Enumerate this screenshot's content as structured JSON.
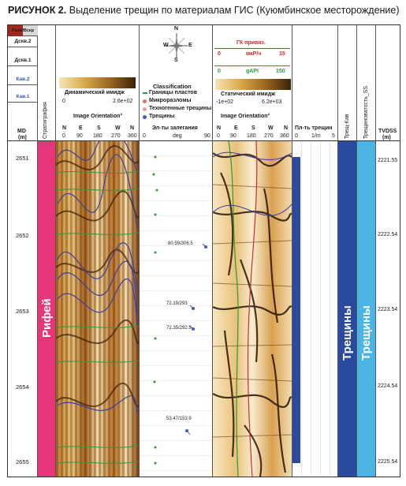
{
  "caption": {
    "prefix": "РИСУНОК 2.",
    "text": "Выделение трещин по материалам ГИС (Куюмбинское месторождение)"
  },
  "left_legend": {
    "items": [
      "Разм/Вскр",
      "Дскв.2",
      "Дскв.1",
      "Кав.2",
      "Кав.1"
    ]
  },
  "md_header": {
    "label": "MD",
    "unit": "(m)"
  },
  "strat_header": {
    "label": "Стратиграфия"
  },
  "dyn_image": {
    "title": "Динамический имидж",
    "min": "0",
    "max": "2.6e+02",
    "orientation": "Image Orientation°",
    "ticks": [
      "N",
      "E",
      "S",
      "W",
      "N"
    ],
    "tick_values": [
      "0",
      "90",
      "180",
      "270",
      "360"
    ]
  },
  "compass": {
    "n": "N",
    "s": "S",
    "w": "W",
    "e": "E"
  },
  "classification": {
    "title": "Classification",
    "items": [
      "Границы пластов",
      "Микроразломы",
      "Техногенные трещины",
      "Трещины"
    ]
  },
  "dip_track": {
    "title": "Эл-ты залегания",
    "min": "0",
    "unit": "deg",
    "max": "90",
    "annotations": [
      "80.59/306.5",
      "72.19/293",
      "72.35/292.5",
      "53.47/153.9"
    ]
  },
  "gk": {
    "title": "ГК привяз.",
    "min": "0",
    "unit": "мкР/ч",
    "max": "15",
    "color": "#d42a2a"
  },
  "gapi": {
    "min": "0",
    "unit": "gAPI",
    "max": "150",
    "color": "#22a032"
  },
  "static_image": {
    "title": "Статический имидж",
    "min": "-1e+02",
    "max": "6.2e+03",
    "orientation": "Image Orientation°",
    "ticks": [
      "N",
      "E",
      "S",
      "W",
      "N"
    ],
    "tick_values": [
      "0",
      "90",
      "180",
      "270",
      "360"
    ]
  },
  "fracture_density": {
    "title": "Пл-ть трещин",
    "min": "0",
    "unit": "1/m",
    "max": "5"
  },
  "fracture_cav": {
    "label": "Трещ-Кав",
    "fill_label": "Трещины",
    "color": "#2a4aa0"
  },
  "fracture_porosity": {
    "label": "Трещиноватость_SS",
    "fill_label": "Трещины",
    "color": "#4ab4e4"
  },
  "tvd_header": {
    "label": "TVDSS",
    "unit": "(m)"
  },
  "strat_unit": {
    "label": "Рифей",
    "color": "#e8357a"
  },
  "md_depths": [
    "2651",
    "2652",
    "2653",
    "2654",
    "2655"
  ],
  "tvd_depths": [
    "2221.55",
    "2222.54",
    "2223.54",
    "2224.54",
    "2225.54"
  ]
}
